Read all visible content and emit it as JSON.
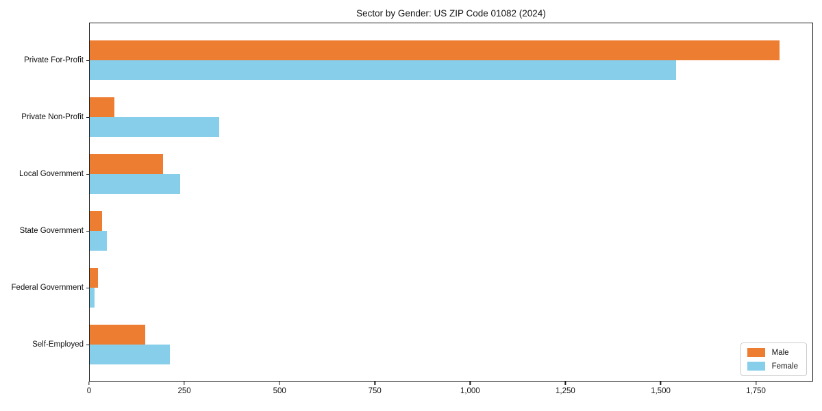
{
  "chart_data": {
    "type": "bar",
    "orientation": "horizontal",
    "title": "Sector by Gender: US ZIP Code 01082 (2024)",
    "categories": [
      "Private For-Profit",
      "Private Non-Profit",
      "Local Government",
      "State Government",
      "Federal Government",
      "Self-Employed"
    ],
    "series": [
      {
        "name": "Male",
        "color": "#ED7D31",
        "values": [
          1813,
          65,
          192,
          33,
          22,
          146
        ]
      },
      {
        "name": "Female",
        "color": "#87CEEB",
        "values": [
          1541,
          341,
          237,
          45,
          13,
          211
        ]
      }
    ],
    "xlabel": "",
    "ylabel": "",
    "xlim": [
      0,
      1900
    ],
    "xticks": [
      0,
      250,
      500,
      750,
      1000,
      1250,
      1500,
      1750
    ],
    "xtick_labels": [
      "0",
      "250",
      "500",
      "750",
      "1,000",
      "1,250",
      "1,500",
      "1,750"
    ],
    "grid": false,
    "legend_position": "lower right",
    "legend_entries": [
      "Male",
      "Female"
    ],
    "plot_border_color": "#1a1a1a",
    "background_color": "#ffffff"
  }
}
